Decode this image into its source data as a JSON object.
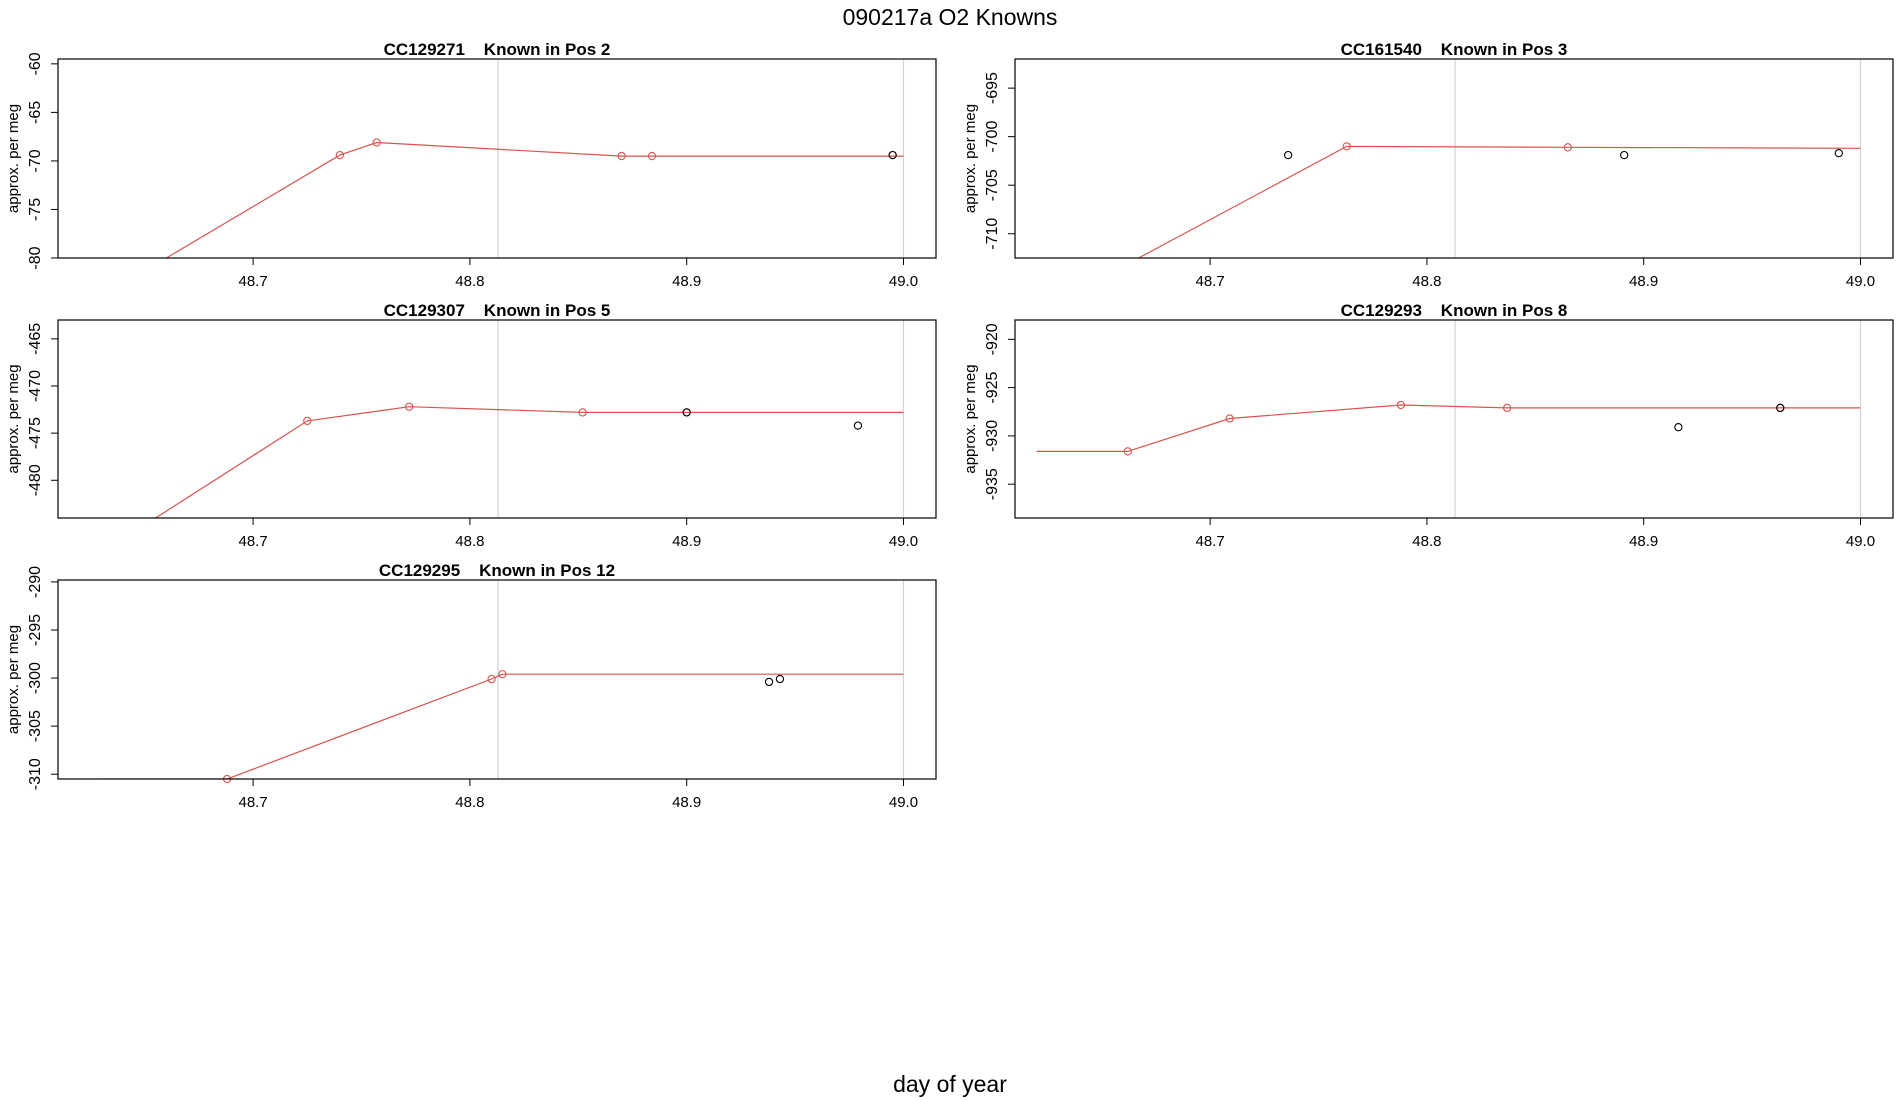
{
  "title": "090217a   O2 Knowns",
  "xlabel": "day of year",
  "colors": {
    "fit_line": "#d9534f",
    "point_fit": "#d9534f",
    "point_other": "#000000",
    "vline": "#d3d3d3",
    "axis": "#000000"
  },
  "chart_data": [
    {
      "type": "line",
      "title": "CC129271    Known in Pos 2",
      "ylabel": "approx. per meg",
      "xlim": [
        48.61,
        49.015
      ],
      "ylim": [
        -80,
        -59.5
      ],
      "yticks": [
        -80,
        -75,
        -70,
        -65,
        -60
      ],
      "xticks": [
        48.7,
        48.8,
        48.9,
        49.0
      ],
      "xtick_labels": [
        "48.7",
        "48.8",
        "48.9",
        "49.0"
      ],
      "vlines": [
        48.813,
        49.0
      ],
      "series": [
        {
          "kind": "line",
          "x": [
            48.66,
            48.74,
            48.757,
            48.87,
            48.884,
            48.995,
            49.0
          ],
          "y": [
            -80,
            -69.4,
            -68.1,
            -69.5,
            -69.5,
            -69.5,
            -69.5
          ]
        },
        {
          "kind": "points-fit",
          "x": [
            48.74,
            48.757,
            48.87,
            48.884,
            48.995
          ],
          "y": [
            -69.4,
            -68.1,
            -69.5,
            -69.5,
            -69.4
          ]
        },
        {
          "kind": "points-other",
          "x": [
            48.995
          ],
          "y": [
            -69.4
          ]
        }
      ]
    },
    {
      "type": "line",
      "title": "CC161540    Known in Pos 3",
      "ylabel": "approx. per meg",
      "xlim": [
        48.61,
        49.015
      ],
      "ylim": [
        -712.5,
        -692
      ],
      "yticks": [
        -710,
        -705,
        -700,
        -695
      ],
      "xticks": [
        48.7,
        48.8,
        48.9,
        49.0
      ],
      "xtick_labels": [
        "48.7",
        "48.8",
        "48.9",
        "49.0"
      ],
      "vlines": [
        48.813,
        49.0
      ],
      "series": [
        {
          "kind": "line",
          "x": [
            48.667,
            48.763,
            48.865,
            49.0
          ],
          "y": [
            -712.5,
            -701.0,
            -701.1,
            -701.2
          ]
        },
        {
          "kind": "points-fit",
          "x": [
            48.763,
            48.865
          ],
          "y": [
            -701.0,
            -701.1
          ]
        },
        {
          "kind": "points-other",
          "x": [
            48.736,
            48.891,
            48.99
          ],
          "y": [
            -701.9,
            -701.9,
            -701.7
          ]
        }
      ]
    },
    {
      "type": "line",
      "title": "CC129307    Known in Pos 5",
      "ylabel": "approx. per meg",
      "xlim": [
        48.61,
        49.015
      ],
      "ylim": [
        -484,
        -463
      ],
      "yticks": [
        -480,
        -475,
        -470,
        -465
      ],
      "xticks": [
        48.7,
        48.8,
        48.9,
        49.0
      ],
      "xtick_labels": [
        "48.7",
        "48.8",
        "48.9",
        "49.0"
      ],
      "vlines": [
        48.813,
        49.0
      ],
      "series": [
        {
          "kind": "line",
          "x": [
            48.655,
            48.725,
            48.772,
            48.852,
            48.9,
            49.0
          ],
          "y": [
            -484,
            -473.7,
            -472.2,
            -472.8,
            -472.8,
            -472.8
          ]
        },
        {
          "kind": "points-fit",
          "x": [
            48.725,
            48.772,
            48.852,
            48.9
          ],
          "y": [
            -473.7,
            -472.2,
            -472.8,
            -472.8
          ]
        },
        {
          "kind": "points-other",
          "x": [
            48.9,
            48.979
          ],
          "y": [
            -472.8,
            -474.2
          ]
        }
      ]
    },
    {
      "type": "line",
      "title": "CC129293    Known in Pos 8",
      "ylabel": "approx. per meg",
      "xlim": [
        48.61,
        49.015
      ],
      "ylim": [
        -938.5,
        -918
      ],
      "yticks": [
        -935,
        -930,
        -925,
        -920
      ],
      "xticks": [
        48.7,
        48.8,
        48.9,
        49.0
      ],
      "xtick_labels": [
        "48.7",
        "48.8",
        "48.9",
        "49.0"
      ],
      "vlines": [
        48.813,
        49.0
      ],
      "series": [
        {
          "kind": "line",
          "x": [
            48.62,
            48.662,
            48.709,
            48.788,
            48.837,
            48.963,
            49.0
          ],
          "y": [
            -931.6,
            -931.6,
            -928.2,
            -926.8,
            -927.1,
            -927.1,
            -927.1
          ]
        },
        {
          "kind": "points-fit",
          "x": [
            48.662,
            48.709,
            48.788,
            48.837,
            48.963
          ],
          "y": [
            -931.6,
            -928.2,
            -926.8,
            -927.1,
            -927.1
          ]
        },
        {
          "kind": "points-other",
          "x": [
            48.916,
            48.963
          ],
          "y": [
            -929.1,
            -927.1
          ]
        }
      ]
    },
    {
      "type": "line",
      "title": "CC129295    Known in Pos 12",
      "ylabel": "approx. per meg",
      "xlim": [
        48.61,
        49.015
      ],
      "ylim": [
        -310.5,
        -289.8
      ],
      "yticks": [
        -310,
        -305,
        -300,
        -295,
        -290
      ],
      "xticks": [
        48.7,
        48.8,
        48.9,
        49.0
      ],
      "xtick_labels": [
        "48.7",
        "48.8",
        "48.9",
        "49.0"
      ],
      "vlines": [
        48.813,
        49.0
      ],
      "series": [
        {
          "kind": "line",
          "x": [
            48.63,
            48.688,
            48.81,
            48.815,
            49.0
          ],
          "y": [
            -310.5,
            -310.5,
            -300.1,
            -299.6,
            -299.6
          ]
        },
        {
          "kind": "points-fit",
          "x": [
            48.688,
            48.81,
            48.815
          ],
          "y": [
            -310.5,
            -300.1,
            -299.6
          ]
        },
        {
          "kind": "points-other",
          "x": [
            48.938,
            48.943
          ],
          "y": [
            -300.4,
            -300.1
          ]
        }
      ]
    }
  ]
}
